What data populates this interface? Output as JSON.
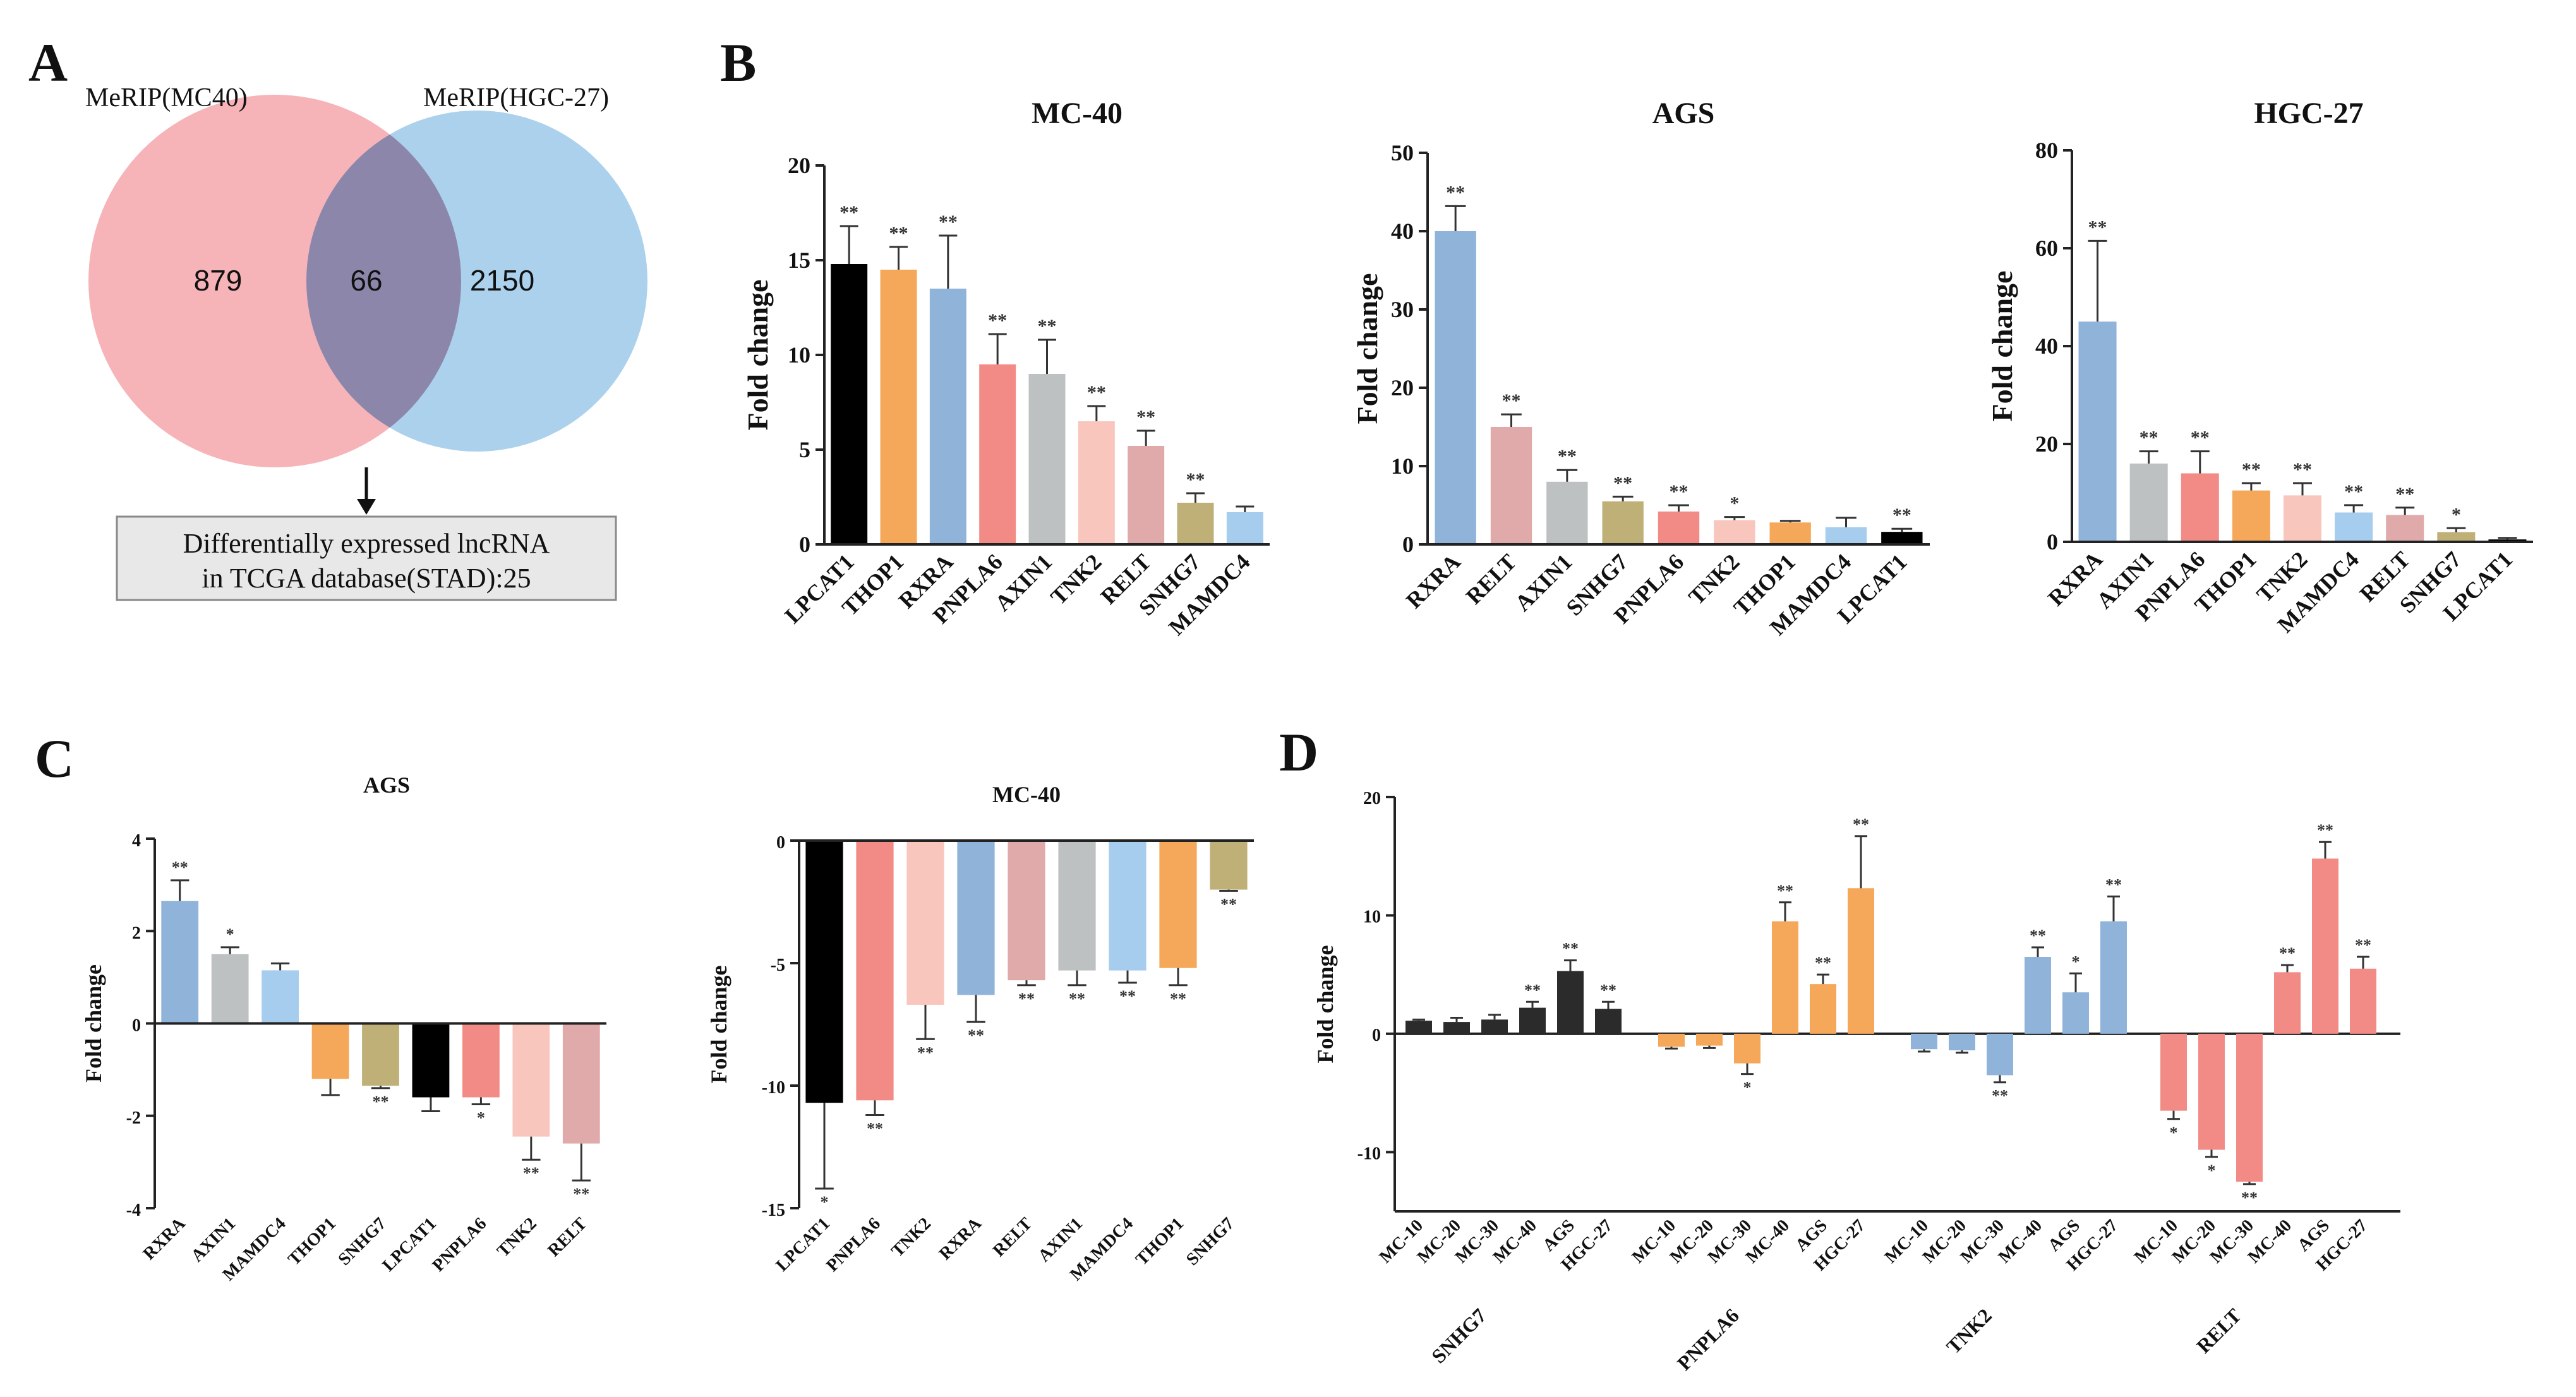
{
  "panels": {
    "A": "A",
    "B": "B",
    "C": "C",
    "D": "D"
  },
  "venn": {
    "left_label": "MeRIP(MC40)",
    "right_label": "MeRIP(HGC-27)",
    "left_only": "879",
    "overlap": "66",
    "right_only": "2150",
    "left_color": "#f4a6ab",
    "right_color": "#9cc9ea",
    "result_line1": "Differentially expressed lncRNA",
    "result_line2": "in TCGA database(STAD):25"
  },
  "gene_colors": {
    "LPCAT1": "#000000",
    "THOP1": "#f5a85a",
    "RXRA": "#8fb3d9",
    "PNPLA6": "#f28b86",
    "AXIN1": "#bdc1c2",
    "TNK2": "#f9c6bd",
    "RELT": "#e0aaaa",
    "SNHG7": "#bfb078",
    "MAMDC4": "#a6ccee"
  },
  "y_axis_label": "Fold change",
  "chart_data": [
    {
      "id": "B1",
      "type": "bar",
      "title": "MC-40",
      "ylabel": "Fold change",
      "ylim": [
        0,
        20
      ],
      "yticks": [
        0,
        5,
        10,
        15,
        20
      ],
      "categories": [
        "LPCAT1",
        "THOP1",
        "RXRA",
        "PNPLA6",
        "AXIN1",
        "TNK2",
        "RELT",
        "SNHG7",
        "MAMDC4"
      ],
      "values": [
        14.8,
        14.5,
        13.5,
        9.5,
        9.0,
        6.5,
        5.2,
        2.2,
        1.7
      ],
      "errors": [
        2.0,
        1.2,
        2.8,
        1.6,
        1.8,
        0.8,
        0.8,
        0.5,
        0.3
      ],
      "significance": [
        "**",
        "**",
        "**",
        "**",
        "**",
        "**",
        "**",
        "**",
        ""
      ]
    },
    {
      "id": "B2",
      "type": "bar",
      "title": "AGS",
      "ylabel": "Fold change",
      "ylim": [
        0,
        50
      ],
      "yticks": [
        0,
        10,
        20,
        30,
        40,
        50
      ],
      "categories": [
        "RXRA",
        "RELT",
        "AXIN1",
        "SNHG7",
        "PNPLA6",
        "TNK2",
        "THOP1",
        "MAMDC4",
        "LPCAT1"
      ],
      "values": [
        40,
        15,
        8,
        5.5,
        4.2,
        3.1,
        2.8,
        2.2,
        1.6
      ],
      "errors": [
        3.2,
        1.6,
        1.5,
        0.6,
        0.8,
        0.4,
        0.2,
        1.2,
        0.4
      ],
      "significance": [
        "**",
        "**",
        "**",
        "**",
        "**",
        "*",
        "",
        "",
        "**"
      ]
    },
    {
      "id": "B3",
      "type": "bar",
      "title": "HGC-27",
      "ylabel": "Fold change",
      "ylim": [
        0,
        80
      ],
      "yticks": [
        0,
        20,
        40,
        60,
        80
      ],
      "categories": [
        "RXRA",
        "AXIN1",
        "PNPLA6",
        "THOP1",
        "TNK2",
        "MAMDC4",
        "RELT",
        "SNHG7",
        "LPCAT1"
      ],
      "values": [
        45,
        16,
        14,
        10.5,
        9.5,
        6,
        5.5,
        2,
        0.5
      ],
      "errors": [
        16.5,
        2.5,
        4.5,
        1.5,
        2.5,
        1.5,
        1.5,
        0.8,
        0.3
      ],
      "significance": [
        "**",
        "**",
        "**",
        "**",
        "**",
        "**",
        "**",
        "*",
        ""
      ]
    },
    {
      "id": "C1",
      "type": "bar",
      "title": "AGS",
      "ylabel": "Fold change",
      "ylim": [
        -4,
        4
      ],
      "yticks": [
        -4,
        -2,
        0,
        2,
        4
      ],
      "categories": [
        "RXRA",
        "AXIN1",
        "MAMDC4",
        "THOP1",
        "SNHG7",
        "LPCAT1",
        "PNPLA6",
        "TNK2",
        "RELT"
      ],
      "values": [
        2.65,
        1.5,
        1.15,
        -1.2,
        -1.35,
        -1.6,
        -1.6,
        -2.45,
        -2.6
      ],
      "errors": [
        0.45,
        0.15,
        0.15,
        0.35,
        0.05,
        0.3,
        0.15,
        0.5,
        0.8
      ],
      "significance": [
        "**",
        "*",
        "",
        "",
        "**",
        "",
        "*",
        "**",
        "**"
      ]
    },
    {
      "id": "C2",
      "type": "bar",
      "title": "MC-40",
      "ylabel": "Fold change",
      "ylim": [
        -15,
        0
      ],
      "yticks": [
        -15,
        -10,
        -5,
        0
      ],
      "categories": [
        "LPCAT1",
        "PNPLA6",
        "TNK2",
        "RXRA",
        "RELT",
        "AXIN1",
        "MAMDC4",
        "THOP1",
        "SNHG7"
      ],
      "values": [
        -10.7,
        -10.6,
        -6.7,
        -6.3,
        -5.7,
        -5.3,
        -5.3,
        -5.2,
        -2.0
      ],
      "errors": [
        3.5,
        0.6,
        1.4,
        1.1,
        0.2,
        0.6,
        0.5,
        0.7,
        0.05
      ],
      "significance": [
        "*",
        "**",
        "**",
        "**",
        "**",
        "**",
        "**",
        "**",
        "**"
      ]
    },
    {
      "id": "D",
      "type": "bar",
      "ylabel": "Fold change",
      "ylim": [
        -15,
        20
      ],
      "yticks": [
        -10,
        0,
        10,
        20
      ],
      "categories": [
        "MC-10",
        "MC-20",
        "MC-30",
        "MC-40",
        "AGS",
        "HGC-27"
      ],
      "series": [
        {
          "name": "SNHG7",
          "color": "#2b2b2b",
          "values": [
            1.1,
            1.0,
            1.2,
            2.2,
            5.3,
            2.1
          ],
          "errors": [
            0.1,
            0.35,
            0.4,
            0.5,
            0.9,
            0.6
          ],
          "significance": [
            "",
            "",
            "",
            "**",
            "**",
            "**"
          ]
        },
        {
          "name": "PNPLA6",
          "color": "#f5a85a",
          "values": [
            -1.1,
            -1.0,
            -2.5,
            9.5,
            4.2,
            12.3
          ],
          "errors": [
            0.15,
            0.2,
            0.9,
            1.6,
            0.8,
            4.4
          ],
          "significance": [
            "",
            "",
            "*",
            "**",
            "**",
            "**"
          ]
        },
        {
          "name": "TNK2",
          "color": "#8fb3d9",
          "values": [
            -1.3,
            -1.4,
            -3.5,
            6.5,
            3.5,
            9.5
          ],
          "errors": [
            0.2,
            0.2,
            0.6,
            0.8,
            1.6,
            2.1
          ],
          "significance": [
            "",
            "",
            "**",
            "**",
            "*",
            "**"
          ]
        },
        {
          "name": "RELT",
          "color": "#f28b86",
          "values": [
            -6.5,
            -9.8,
            -12.5,
            5.2,
            14.8,
            5.5
          ],
          "errors": [
            0.7,
            0.6,
            0.2,
            0.6,
            1.4,
            1.0
          ],
          "significance": [
            "*",
            "*",
            "**",
            "**",
            "**",
            "**"
          ]
        }
      ]
    }
  ]
}
